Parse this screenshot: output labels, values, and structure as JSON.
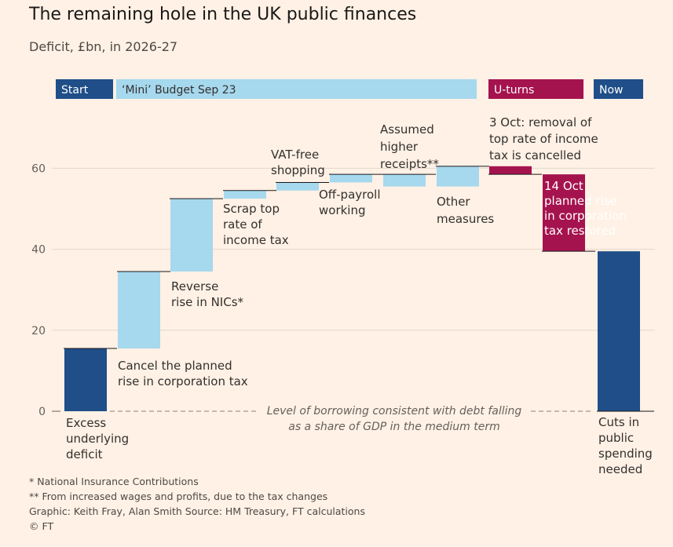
{
  "title": "The remaining hole in the UK public finances",
  "subtitle": "Deficit, £bn, in 2026-27",
  "notes": [
    "* National Insurance Contributions",
    "** From increased wages and profits, due to the tax changes",
    "Graphic: Keith Fray, Alan Smith   Source: HM Treasury, FT calculations",
    "© FT"
  ],
  "colors": {
    "background": "#fff1e5",
    "dark_blue": "#1f4e88",
    "light_blue": "#a6d8ee",
    "crimson": "#a5134f"
  },
  "chart_data": {
    "type": "bar",
    "subtype": "waterfall",
    "unit": "£bn",
    "ylim": [
      0,
      70
    ],
    "yticks": [
      0,
      20,
      40,
      60
    ],
    "grid": true,
    "baseline_annotation": "Level of borrowing consistent with debt falling as a share of GDP in the medium term",
    "phases": [
      {
        "label": "Start",
        "color": "dark_blue",
        "steps": [
          0,
          0
        ]
      },
      {
        "label": "‘Mini’ Budget Sep 23",
        "color": "light_blue",
        "steps": [
          1,
          7
        ]
      },
      {
        "label": "U-turns",
        "color": "crimson",
        "steps": [
          8,
          9
        ]
      },
      {
        "label": "Now",
        "color": "dark_blue",
        "steps": [
          10,
          10
        ]
      }
    ],
    "steps": [
      {
        "lines": [
          "Excess",
          "underlying",
          "deficit"
        ],
        "start": 0,
        "end": 15.5,
        "color": "dark_blue"
      },
      {
        "lines": [
          "Cancel the planned",
          "rise in corporation tax"
        ],
        "start": 15.5,
        "end": 34.5,
        "color": "light_blue"
      },
      {
        "lines": [
          "Reverse",
          "rise in NICs*"
        ],
        "start": 34.5,
        "end": 52.5,
        "color": "light_blue"
      },
      {
        "lines": [
          "Scrap top",
          "rate of",
          "income tax"
        ],
        "start": 52.5,
        "end": 54.5,
        "color": "light_blue"
      },
      {
        "lines": [
          "VAT-free",
          "shopping"
        ],
        "start": 54.5,
        "end": 56.5,
        "color": "light_blue"
      },
      {
        "lines": [
          "Off-payroll",
          "working"
        ],
        "start": 56.5,
        "end": 58.5,
        "color": "light_blue"
      },
      {
        "lines": [
          "Assumed",
          "higher",
          "receipts**"
        ],
        "start": 55.5,
        "end": 58.5,
        "color": "light_blue"
      },
      {
        "lines": [
          "Other",
          "measures"
        ],
        "start": 55.5,
        "end": 60.5,
        "color": "light_blue"
      },
      {
        "lines": [
          "3 Oct: removal of",
          "top rate of income",
          "tax is cancelled"
        ],
        "start": 60.5,
        "end": 58.5,
        "color": "crimson"
      },
      {
        "lines": [
          "14 Oct",
          "planned rise",
          "in corporation",
          "tax restored"
        ],
        "start": 58.5,
        "end": 39.5,
        "color": "crimson"
      },
      {
        "lines": [
          "Cuts in",
          "public",
          "spending",
          "needed"
        ],
        "start": 39.5,
        "end": 0,
        "color": "dark_blue"
      }
    ]
  }
}
